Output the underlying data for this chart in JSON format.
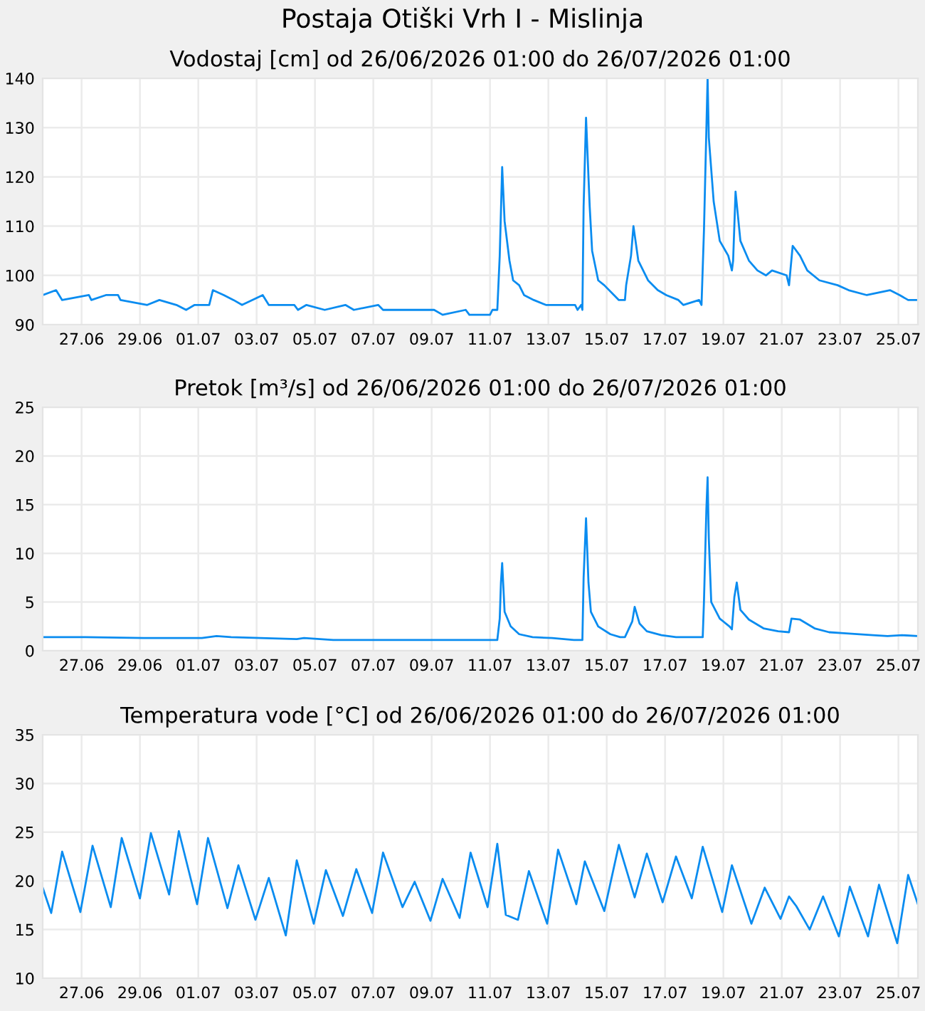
{
  "chart_data": [
    {
      "type": "line",
      "title": "Postaja Otiški Vrh I - Mislinja",
      "subtitle": "Vodostaj [cm] od 26/06/2026 01:00 do 26/07/2026 01:00",
      "grid": true,
      "xlim": [
        "2026-06-26T01:00",
        "2026-07-26T01:00"
      ],
      "xticks": [
        {
          "value": "2026-06-27T09:00",
          "label": "27.06"
        },
        {
          "value": "2026-06-29T09:00",
          "label": "29.06"
        },
        {
          "value": "2026-07-01T09:00",
          "label": "01.07"
        },
        {
          "value": "2026-07-03T09:00",
          "label": "03.07"
        },
        {
          "value": "2026-07-05T09:00",
          "label": "05.07"
        },
        {
          "value": "2026-07-07T09:00",
          "label": "07.07"
        },
        {
          "value": "2026-07-09T09:00",
          "label": "09.07"
        },
        {
          "value": "2026-07-11T09:00",
          "label": "11.07"
        },
        {
          "value": "2026-07-13T09:00",
          "label": "13.07"
        },
        {
          "value": "2026-07-15T09:00",
          "label": "15.07"
        },
        {
          "value": "2026-07-17T09:00",
          "label": "17.07"
        },
        {
          "value": "2026-07-19T09:00",
          "label": "19.07"
        },
        {
          "value": "2026-07-21T09:00",
          "label": "21.07"
        },
        {
          "value": "2026-07-23T09:00",
          "label": "23.07"
        },
        {
          "value": "2026-07-25T09:00",
          "label": "25.07"
        }
      ],
      "ylim": [
        90,
        140
      ],
      "yticks": [
        90,
        100,
        110,
        120,
        130,
        140
      ],
      "series": [
        {
          "color": "#0a8cf0",
          "x": [
            "2026-06-26T01:00",
            "2026-06-26T12:00",
            "2026-06-26T17:00",
            "2026-06-27T15:00",
            "2026-06-27T17:00",
            "2026-06-28T05:00",
            "2026-06-28T15:00",
            "2026-06-28T17:00",
            "2026-06-29T15:00",
            "2026-06-30T01:00",
            "2026-06-30T15:00",
            "2026-06-30T23:00",
            "2026-07-01T06:00",
            "2026-07-01T18:00",
            "2026-07-01T21:00",
            "2026-07-02T06:00",
            "2026-07-02T14:00",
            "2026-07-02T21:00",
            "2026-07-03T14:00",
            "2026-07-03T19:00",
            "2026-07-04T16:00",
            "2026-07-04T19:00",
            "2026-07-05T02:00",
            "2026-07-05T17:00",
            "2026-07-06T10:00",
            "2026-07-06T17:00",
            "2026-07-07T13:00",
            "2026-07-07T17:00",
            "2026-07-09T11:00",
            "2026-07-09T18:00",
            "2026-07-10T13:00",
            "2026-07-10T16:00",
            "2026-07-11T09:00",
            "2026-07-11T11:00",
            "2026-07-11T15:00",
            "2026-07-11T17:00",
            "2026-07-11T19:00",
            "2026-07-11T21:00",
            "2026-07-12T01:00",
            "2026-07-12T04:00",
            "2026-07-12T09:00",
            "2026-07-12T13:00",
            "2026-07-12T21:00",
            "2026-07-13T07:00",
            "2026-07-14T07:00",
            "2026-07-14T09:00",
            "2026-07-14T12:00",
            "2026-07-14T13:00",
            "2026-07-14T14:00",
            "2026-07-14T16:00",
            "2026-07-14T19:00",
            "2026-07-14T21:00",
            "2026-07-15T02:00",
            "2026-07-15T07:00",
            "2026-07-15T15:00",
            "2026-07-15T19:00",
            "2026-07-16T00:00",
            "2026-07-16T01:00",
            "2026-07-16T05:00",
            "2026-07-16T07:00",
            "2026-07-16T11:00",
            "2026-07-16T15:00",
            "2026-07-16T19:00",
            "2026-07-17T03:00",
            "2026-07-17T10:00",
            "2026-07-17T20:00",
            "2026-07-18T00:00",
            "2026-07-18T13:00",
            "2026-07-18T15:00",
            "2026-07-18T17:00",
            "2026-07-18T20:00",
            "2026-07-18T21:00",
            "2026-07-19T01:00",
            "2026-07-19T06:00",
            "2026-07-19T13:00",
            "2026-07-19T16:00",
            "2026-07-19T17:00",
            "2026-07-19T19:00",
            "2026-07-19T23:00",
            "2026-07-20T06:00",
            "2026-07-20T13:00",
            "2026-07-20T20:00",
            "2026-07-21T01:00",
            "2026-07-21T13:00",
            "2026-07-21T15:00",
            "2026-07-21T18:00",
            "2026-07-22T00:00",
            "2026-07-22T06:00",
            "2026-07-22T16:00",
            "2026-07-23T07:00",
            "2026-07-23T16:00",
            "2026-07-24T07:00",
            "2026-07-25T02:00",
            "2026-07-25T10:00",
            "2026-07-25T17:00",
            "2026-07-26T01:00"
          ],
          "values": [
            96,
            97,
            95,
            96,
            95,
            96,
            96,
            95,
            94,
            95,
            94,
            93,
            94,
            94,
            97,
            96,
            95,
            94,
            96,
            94,
            94,
            93,
            94,
            93,
            94,
            93,
            94,
            93,
            93,
            92,
            93,
            92,
            92,
            93,
            93,
            104,
            122,
            111,
            103,
            99,
            98,
            96,
            95,
            94,
            94,
            93,
            94,
            93,
            114,
            132,
            114,
            105,
            99,
            98,
            96,
            95,
            95,
            98,
            104,
            110,
            103,
            101,
            99,
            97,
            96,
            95,
            94,
            95,
            94,
            109,
            140,
            128,
            115,
            107,
            104,
            101,
            103,
            117,
            107,
            103,
            101,
            100,
            101,
            100,
            98,
            106,
            104,
            101,
            99,
            98,
            97,
            96,
            97,
            96,
            95,
            95
          ]
        }
      ]
    },
    {
      "type": "line",
      "title": "Pretok [m³/s] od 26/06/2026 01:00 do 26/07/2026 01:00",
      "grid": true,
      "xlim": [
        "2026-06-26T01:00",
        "2026-07-26T01:00"
      ],
      "xticks": [
        {
          "value": "2026-06-27T09:00",
          "label": "27.06"
        },
        {
          "value": "2026-06-29T09:00",
          "label": "29.06"
        },
        {
          "value": "2026-07-01T09:00",
          "label": "01.07"
        },
        {
          "value": "2026-07-03T09:00",
          "label": "03.07"
        },
        {
          "value": "2026-07-05T09:00",
          "label": "05.07"
        },
        {
          "value": "2026-07-07T09:00",
          "label": "07.07"
        },
        {
          "value": "2026-07-09T09:00",
          "label": "09.07"
        },
        {
          "value": "2026-07-11T09:00",
          "label": "11.07"
        },
        {
          "value": "2026-07-13T09:00",
          "label": "13.07"
        },
        {
          "value": "2026-07-15T09:00",
          "label": "15.07"
        },
        {
          "value": "2026-07-17T09:00",
          "label": "17.07"
        },
        {
          "value": "2026-07-19T09:00",
          "label": "19.07"
        },
        {
          "value": "2026-07-21T09:00",
          "label": "21.07"
        },
        {
          "value": "2026-07-23T09:00",
          "label": "23.07"
        },
        {
          "value": "2026-07-25T09:00",
          "label": "25.07"
        }
      ],
      "ylim": [
        0,
        25
      ],
      "yticks": [
        0,
        5,
        10,
        15,
        20,
        25
      ],
      "series": [
        {
          "color": "#0a8cf0",
          "x": [
            "2026-06-26T01:00",
            "2026-06-27T12:00",
            "2026-06-29T12:00",
            "2026-07-01T12:00",
            "2026-07-02T00:00",
            "2026-07-02T12:00",
            "2026-07-03T12:00",
            "2026-07-04T18:00",
            "2026-07-05T00:00",
            "2026-07-06T00:00",
            "2026-07-11T15:00",
            "2026-07-11T17:00",
            "2026-07-11T18:00",
            "2026-07-11T19:00",
            "2026-07-11T20:00",
            "2026-07-11T21:00",
            "2026-07-12T02:00",
            "2026-07-12T09:00",
            "2026-07-12T20:00",
            "2026-07-13T12:00",
            "2026-07-14T06:00",
            "2026-07-14T13:00",
            "2026-07-14T14:00",
            "2026-07-14T16:00",
            "2026-07-14T18:00",
            "2026-07-14T20:00",
            "2026-07-15T02:00",
            "2026-07-15T12:00",
            "2026-07-15T20:00",
            "2026-07-16T00:00",
            "2026-07-16T06:00",
            "2026-07-16T08:00",
            "2026-07-16T12:00",
            "2026-07-16T18:00",
            "2026-07-17T06:00",
            "2026-07-17T18:00",
            "2026-07-18T16:00",
            "2026-07-18T17:00",
            "2026-07-18T19:00",
            "2026-07-18T20:00",
            "2026-07-18T21:00",
            "2026-07-18T23:00",
            "2026-07-19T06:00",
            "2026-07-19T14:00",
            "2026-07-19T16:00",
            "2026-07-19T18:00",
            "2026-07-19T20:00",
            "2026-07-19T23:00",
            "2026-07-20T06:00",
            "2026-07-20T18:00",
            "2026-07-21T06:00",
            "2026-07-21T15:00",
            "2026-07-21T17:00",
            "2026-07-22T00:00",
            "2026-07-22T12:00",
            "2026-07-23T00:00",
            "2026-07-23T12:00",
            "2026-07-24T12:00",
            "2026-07-25T00:00",
            "2026-07-25T12:00",
            "2026-07-26T01:00"
          ],
          "values": [
            1.4,
            1.4,
            1.3,
            1.3,
            1.5,
            1.4,
            1.3,
            1.2,
            1.3,
            1.1,
            1.1,
            3.3,
            7,
            9.0,
            6.5,
            4,
            2.5,
            1.7,
            1.4,
            1.3,
            1.1,
            1.1,
            7.5,
            13.6,
            7,
            4,
            2.5,
            1.7,
            1.4,
            1.4,
            3,
            4.5,
            2.8,
            2.0,
            1.6,
            1.4,
            1.4,
            5,
            14.5,
            17.8,
            11.5,
            5,
            3.3,
            2.5,
            2.2,
            5.5,
            7.0,
            4.2,
            3.2,
            2.3,
            2.0,
            1.9,
            3.3,
            3.2,
            2.3,
            1.9,
            1.8,
            1.6,
            1.5,
            1.6,
            1.5
          ]
        }
      ]
    },
    {
      "type": "line",
      "title": "Temperatura vode [°C] od 26/06/2026 01:00 do 26/07/2026 01:00",
      "grid": true,
      "xlim": [
        "2026-06-26T01:00",
        "2026-07-26T01:00"
      ],
      "xticks": [
        {
          "value": "2026-06-27T09:00",
          "label": "27.06"
        },
        {
          "value": "2026-06-29T09:00",
          "label": "29.06"
        },
        {
          "value": "2026-07-01T09:00",
          "label": "01.07"
        },
        {
          "value": "2026-07-03T09:00",
          "label": "03.07"
        },
        {
          "value": "2026-07-05T09:00",
          "label": "05.07"
        },
        {
          "value": "2026-07-07T09:00",
          "label": "07.07"
        },
        {
          "value": "2026-07-09T09:00",
          "label": "09.07"
        },
        {
          "value": "2026-07-11T09:00",
          "label": "11.07"
        },
        {
          "value": "2026-07-13T09:00",
          "label": "13.07"
        },
        {
          "value": "2026-07-15T09:00",
          "label": "15.07"
        },
        {
          "value": "2026-07-17T09:00",
          "label": "17.07"
        },
        {
          "value": "2026-07-19T09:00",
          "label": "19.07"
        },
        {
          "value": "2026-07-21T09:00",
          "label": "21.07"
        },
        {
          "value": "2026-07-23T09:00",
          "label": "23.07"
        },
        {
          "value": "2026-07-25T09:00",
          "label": "25.07"
        }
      ],
      "ylim": [
        10,
        35
      ],
      "yticks": [
        10,
        15,
        20,
        25,
        30,
        35
      ],
      "series": [
        {
          "color": "#0a8cf0",
          "x": [
            "2026-06-26T01:00",
            "2026-06-26T08:00",
            "2026-06-26T17:00",
            "2026-06-27T08:00",
            "2026-06-27T18:00",
            "2026-06-28T09:00",
            "2026-06-28T18:00",
            "2026-06-29T09:00",
            "2026-06-29T18:00",
            "2026-06-30T09:00",
            "2026-06-30T17:00",
            "2026-07-01T08:00",
            "2026-07-01T17:00",
            "2026-07-02T09:00",
            "2026-07-02T18:00",
            "2026-07-03T08:00",
            "2026-07-03T19:00",
            "2026-07-04T09:00",
            "2026-07-04T18:00",
            "2026-07-05T08:00",
            "2026-07-05T18:00",
            "2026-07-06T08:00",
            "2026-07-06T19:00",
            "2026-07-07T08:00",
            "2026-07-07T17:00",
            "2026-07-08T09:00",
            "2026-07-08T19:00",
            "2026-07-09T08:00",
            "2026-07-09T18:00",
            "2026-07-10T08:00",
            "2026-07-10T17:00",
            "2026-07-11T07:00",
            "2026-07-11T15:00",
            "2026-07-11T22:00",
            "2026-07-12T08:00",
            "2026-07-12T17:00",
            "2026-07-13T08:00",
            "2026-07-13T17:00",
            "2026-07-14T08:00",
            "2026-07-14T15:00",
            "2026-07-15T07:00",
            "2026-07-15T19:00",
            "2026-07-16T08:00",
            "2026-07-16T18:00",
            "2026-07-17T07:00",
            "2026-07-17T18:00",
            "2026-07-18T07:00",
            "2026-07-18T16:00",
            "2026-07-19T08:00",
            "2026-07-19T16:00",
            "2026-07-20T08:00",
            "2026-07-20T19:00",
            "2026-07-21T08:00",
            "2026-07-21T15:00",
            "2026-07-21T21:00",
            "2026-07-22T08:00",
            "2026-07-22T19:00",
            "2026-07-23T08:00",
            "2026-07-23T17:00",
            "2026-07-24T08:00",
            "2026-07-24T17:00",
            "2026-07-25T08:00",
            "2026-07-25T17:00",
            "2026-07-26T01:00"
          ],
          "values": [
            19.3,
            16.7,
            23.0,
            16.8,
            23.6,
            17.3,
            24.4,
            18.2,
            24.9,
            18.6,
            25.1,
            17.6,
            24.4,
            17.2,
            21.6,
            16.0,
            20.3,
            14.4,
            22.1,
            15.6,
            21.1,
            16.4,
            21.2,
            16.7,
            22.9,
            17.3,
            19.9,
            15.9,
            20.2,
            16.2,
            22.9,
            17.3,
            23.8,
            16.5,
            16.0,
            21.0,
            15.6,
            23.2,
            17.6,
            22.0,
            16.9,
            23.7,
            18.3,
            22.8,
            17.8,
            22.5,
            18.2,
            23.5,
            16.8,
            21.6,
            15.6,
            19.3,
            16.1,
            18.4,
            17.4,
            15.0,
            18.4,
            14.3,
            19.4,
            14.3,
            19.6,
            13.6,
            20.6,
            17.6
          ]
        }
      ]
    }
  ]
}
